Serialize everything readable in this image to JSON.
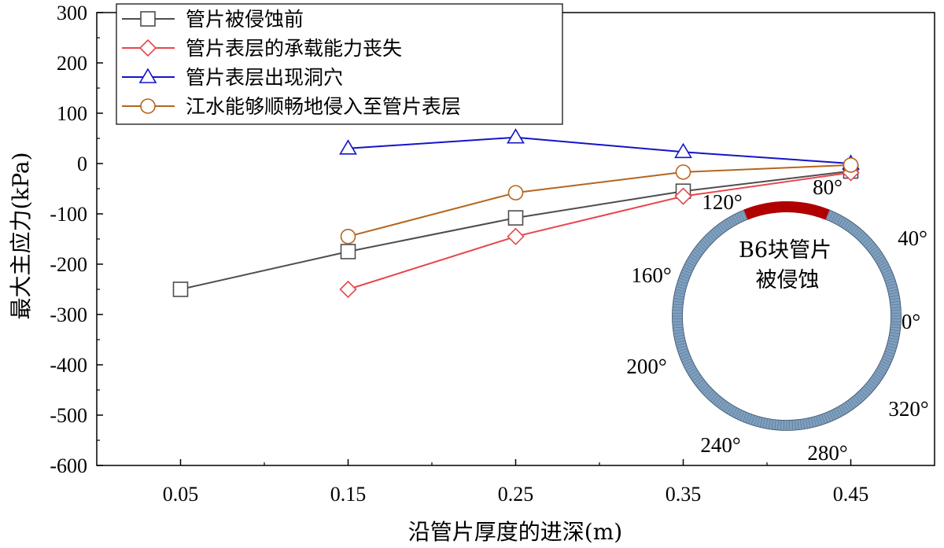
{
  "chart_data": {
    "type": "line",
    "xlabel": "沿管片厚度的进深(m)",
    "ylabel": "最大主应力(kPa)",
    "x": [
      0.05,
      0.15,
      0.25,
      0.35,
      0.45
    ],
    "xticks": [
      "0.05",
      "0.15",
      "0.25",
      "0.35",
      "0.45"
    ],
    "xlim": [
      0,
      0.5
    ],
    "ylim": [
      -600,
      300
    ],
    "yticks": [
      "300",
      "200",
      "100",
      "0",
      "-100",
      "-200",
      "-300",
      "-400",
      "-500",
      "-600"
    ],
    "legend_position": "top-left",
    "series": [
      {
        "name": "管片被侵蚀前",
        "color": "#4d4d4d",
        "marker": "square",
        "x": [
          0.05,
          0.15,
          0.25,
          0.35,
          0.45
        ],
        "values": [
          -250,
          -175,
          -108,
          -55,
          -15
        ]
      },
      {
        "name": "管片表层的承载能力丧失",
        "color": "#e8474c",
        "marker": "diamond",
        "x": [
          0.15,
          0.25,
          0.35,
          0.45
        ],
        "values": [
          -250,
          -145,
          -65,
          -18
        ]
      },
      {
        "name": "管片表层出现洞穴",
        "color": "#1414c8",
        "marker": "triangle",
        "x": [
          0.15,
          0.25,
          0.35,
          0.45
        ],
        "values": [
          30,
          52,
          23,
          0
        ]
      },
      {
        "name": "江水能够顺畅地侵入至管片表层",
        "color": "#b5651d",
        "marker": "circle",
        "x": [
          0.15,
          0.25,
          0.35,
          0.45
        ],
        "values": [
          -145,
          -58,
          -17,
          -3
        ]
      }
    ]
  },
  "inset": {
    "label_line1": "B6块管片",
    "label_line2": "被侵蚀",
    "ring_color": "#7f9fbf",
    "eroded_color": "#b00000",
    "angle_labels": [
      "0°",
      "40°",
      "80°",
      "120°",
      "160°",
      "200°",
      "240°",
      "280°",
      "320°"
    ]
  }
}
